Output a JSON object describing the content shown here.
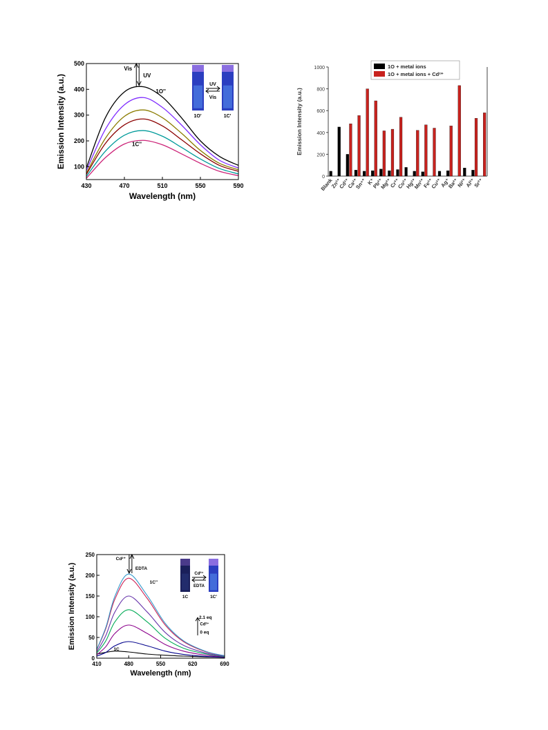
{
  "chart_data": [
    {
      "type": "line",
      "xlabel": "Wavelength (nm)",
      "ylabel": "Emission Intensity (a.u.)",
      "xlim": [
        430,
        590
      ],
      "ylim": [
        50,
        500
      ],
      "xticks": [
        430,
        470,
        510,
        550,
        590
      ],
      "yticks": [
        100,
        200,
        300,
        400,
        500
      ],
      "series": [
        {
          "color": "#000000",
          "x": [
            430,
            450,
            470,
            490,
            510,
            530,
            550,
            570,
            590
          ],
          "y": [
            95,
            290,
            390,
            410,
            370,
            290,
            200,
            140,
            105
          ]
        },
        {
          "color": "#7f2cff",
          "x": [
            430,
            450,
            470,
            490,
            510,
            530,
            550,
            570,
            590
          ],
          "y": [
            85,
            245,
            340,
            368,
            330,
            262,
            185,
            125,
            95
          ]
        },
        {
          "color": "#8b7c00",
          "x": [
            430,
            450,
            470,
            490,
            510,
            530,
            550,
            570,
            590
          ],
          "y": [
            75,
            210,
            295,
            320,
            290,
            230,
            163,
            113,
            88
          ]
        },
        {
          "color": "#8b0000",
          "x": [
            430,
            450,
            470,
            490,
            510,
            530,
            550,
            570,
            590
          ],
          "y": [
            70,
            190,
            262,
            285,
            258,
            205,
            150,
            105,
            82
          ]
        },
        {
          "color": "#009a9a",
          "x": [
            430,
            450,
            470,
            490,
            510,
            530,
            550,
            570,
            590
          ],
          "y": [
            62,
            160,
            222,
            240,
            218,
            175,
            130,
            93,
            72
          ]
        },
        {
          "color": "#cc2277",
          "x": [
            430,
            450,
            470,
            490,
            510,
            530,
            550,
            570,
            590
          ],
          "y": [
            55,
            135,
            188,
            202,
            185,
            150,
            113,
            82,
            65
          ]
        }
      ],
      "annotations": {
        "top_curve": "1O''",
        "bottom_curve": "1C''",
        "arrow_up": "Vis",
        "arrow_down": "UV",
        "inset_left": "1O'",
        "inset_right": "1C'",
        "inset_fwd": "UV",
        "inset_back": "Vis"
      }
    },
    {
      "type": "bar",
      "xlabel": "",
      "ylabel": "Emission Intensity (a.u.)",
      "ylim": [
        0,
        1000
      ],
      "yticks": [
        0,
        200,
        400,
        600,
        800,
        1000
      ],
      "legend_position": "top-center",
      "categories": [
        "Blank",
        "Zn²⁺",
        "Cd²⁺",
        "Ca²⁺",
        "Sn⁴⁺",
        "K⁺",
        "Pb²⁺",
        "Mg²⁺",
        "Cr³⁺",
        "Co²⁺",
        "Hg²⁺",
        "Mn²⁺",
        "Fe³⁺",
        "Cu²⁺",
        "Ag⁺",
        "Ba²⁺",
        "Ni²⁺",
        "Al³⁺",
        "Sr²⁺"
      ],
      "series": [
        {
          "name": "1O + metal ions",
          "color": "#000000",
          "values": [
            45,
            450,
            200,
            55,
            45,
            50,
            65,
            50,
            60,
            80,
            45,
            40,
            0,
            45,
            50,
            0,
            75,
            55,
            0
          ]
        },
        {
          "name": "1O + metal ions + Cd²⁺",
          "color": "#c8221e",
          "values": [
            0,
            0,
            480,
            555,
            800,
            690,
            415,
            430,
            540,
            0,
            420,
            470,
            440,
            0,
            460,
            830,
            0,
            530,
            580
          ]
        }
      ]
    },
    {
      "type": "line",
      "xlabel": "Wavelength (nm)",
      "ylabel": "Emission Intensity (a.u.)",
      "xlim": [
        410,
        690
      ],
      "ylim": [
        0,
        250
      ],
      "xticks": [
        410,
        480,
        550,
        620,
        690
      ],
      "yticks": [
        0,
        50,
        100,
        150,
        200,
        250
      ],
      "series": [
        {
          "color": "#000000",
          "x": [
            410,
            430,
            450,
            480,
            520,
            560,
            600,
            650,
            690
          ],
          "y": [
            10,
            14,
            17,
            15,
            10,
            7,
            5,
            3,
            2
          ]
        },
        {
          "color": "#00008b",
          "x": [
            410,
            430,
            450,
            480,
            520,
            560,
            600,
            650,
            690
          ],
          "y": [
            5,
            14,
            30,
            40,
            30,
            17,
            9,
            4,
            2
          ]
        },
        {
          "color": "#8b008b",
          "x": [
            410,
            430,
            450,
            480,
            520,
            560,
            600,
            650,
            690
          ],
          "y": [
            8,
            28,
            60,
            80,
            60,
            33,
            17,
            7,
            3
          ]
        },
        {
          "color": "#00aa55",
          "x": [
            410,
            430,
            450,
            480,
            520,
            560,
            600,
            650,
            690
          ],
          "y": [
            12,
            42,
            88,
            117,
            88,
            48,
            24,
            10,
            4
          ]
        },
        {
          "color": "#6633aa",
          "x": [
            410,
            430,
            450,
            480,
            520,
            560,
            600,
            650,
            690
          ],
          "y": [
            15,
            55,
            112,
            150,
            112,
            62,
            31,
            12,
            5
          ]
        },
        {
          "color": "#cc2255",
          "x": [
            410,
            430,
            450,
            480,
            520,
            560,
            600,
            650,
            690
          ],
          "y": [
            20,
            72,
            143,
            193,
            145,
            80,
            40,
            15,
            6
          ]
        },
        {
          "color": "#3399cc",
          "x": [
            410,
            430,
            450,
            480,
            520,
            560,
            600,
            650,
            690
          ],
          "y": [
            21,
            75,
            150,
            203,
            152,
            84,
            42,
            16,
            6
          ]
        }
      ],
      "annotations": {
        "cd_label": "Cd²⁺",
        "edta_label": "EDTA",
        "peak_label": "1C''",
        "bottom_label": "1C",
        "eq_top": "2.1 eq",
        "eq_mid": "Cd²⁺",
        "eq_bottom": "0 eq",
        "inset_left": "1C",
        "inset_right": "1C'",
        "inset_fwd": "Cd²⁺",
        "inset_back": "EDTA"
      }
    }
  ]
}
